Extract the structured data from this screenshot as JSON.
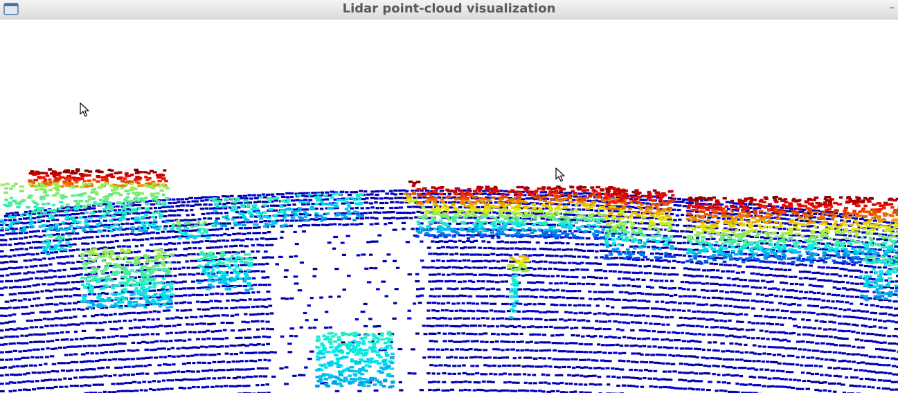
{
  "window": {
    "title": "Lidar point-cloud visualization",
    "minimize_glyph": "–",
    "icons": {
      "app": "window-menu-icon",
      "minimize": "minimize-icon",
      "pointer": "mouse-pointer-icon"
    }
  },
  "colormap": {
    "name": "jet",
    "low": "#0000c8",
    "mid": "#00e0e0",
    "high": "#e00000"
  }
}
